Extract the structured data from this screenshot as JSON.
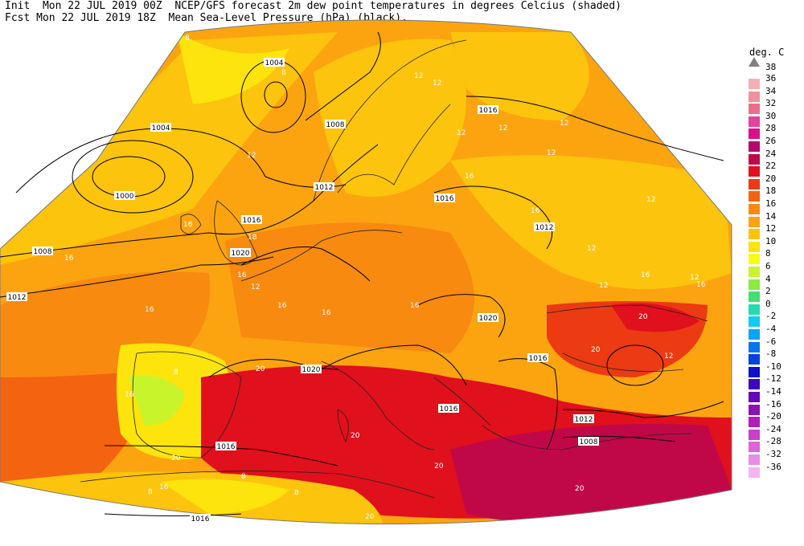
{
  "header": {
    "line1": "Init  Mon 22 JUL 2019 00Z  NCEP/GFS forecast 2m dew point temperatures in degrees Celcius (shaded)",
    "line2": "Fcst Mon 22 JUL 2019 18Z  Mean Sea-Level Pressure (hPa) (black)."
  },
  "legend": {
    "unit": "deg. C",
    "top_arrow_icon": "triangle-up-icon",
    "top_label": "38",
    "entries": [
      {
        "label": "36",
        "color": "#f4b0b4"
      },
      {
        "label": "34",
        "color": "#f0909c"
      },
      {
        "label": "32",
        "color": "#ec6c8c"
      },
      {
        "label": "30",
        "color": "#e8409c"
      },
      {
        "label": "28",
        "color": "#d8108c"
      },
      {
        "label": "26",
        "color": "#b4086c"
      },
      {
        "label": "24",
        "color": "#c00848"
      },
      {
        "label": "22",
        "color": "#e0101c"
      },
      {
        "label": "20",
        "color": "#ec3a12"
      },
      {
        "label": "18",
        "color": "#f46410"
      },
      {
        "label": "16",
        "color": "#f88a10"
      },
      {
        "label": "14",
        "color": "#fca410"
      },
      {
        "label": "12",
        "color": "#fcc40c"
      },
      {
        "label": "10",
        "color": "#fce40c"
      },
      {
        "label": "8",
        "color": "#f8fc14"
      },
      {
        "label": "6",
        "color": "#c8f42c"
      },
      {
        "label": "4",
        "color": "#88ec3c"
      },
      {
        "label": "2",
        "color": "#40e070"
      },
      {
        "label": "0",
        "color": "#20dcb0"
      },
      {
        "label": "-2",
        "color": "#10ccf0"
      },
      {
        "label": "-4",
        "color": "#08a4f8"
      },
      {
        "label": "-6",
        "color": "#0874f0"
      },
      {
        "label": "-8",
        "color": "#0840e0"
      },
      {
        "label": "-10",
        "color": "#1010d0"
      },
      {
        "label": "-12",
        "color": "#3c08c0"
      },
      {
        "label": "-14",
        "color": "#6408b8"
      },
      {
        "label": "-16",
        "color": "#8c10b4"
      },
      {
        "label": "-20",
        "color": "#b020b8"
      },
      {
        "label": "-24",
        "color": "#c840c8"
      },
      {
        "label": "-28",
        "color": "#dc64dc"
      },
      {
        "label": "-32",
        "color": "#e88ce8"
      },
      {
        "label": "-36",
        "color": "#f4b4f4"
      }
    ]
  },
  "pressure_labels": [
    "1004",
    "1004",
    "1008",
    "1016",
    "1000",
    "1012",
    "1016",
    "1016",
    "1012",
    "1008",
    "1020",
    "1012",
    "1020",
    "1016",
    "1020",
    "1016",
    "1016",
    "1012",
    "1008",
    "1016"
  ],
  "dewpoint_labels": [
    "8",
    "8",
    "12",
    "12",
    "12",
    "12",
    "12",
    "12",
    "12",
    "16",
    "18",
    "16",
    "12",
    "16",
    "12",
    "16",
    "16",
    "12",
    "16",
    "16",
    "12",
    "20",
    "12",
    "16",
    "20",
    "16",
    "16",
    "16",
    "20",
    "20",
    "20",
    "20",
    "20",
    "8",
    "8",
    "8",
    "16",
    "16",
    "12",
    "8",
    "20"
  ]
}
